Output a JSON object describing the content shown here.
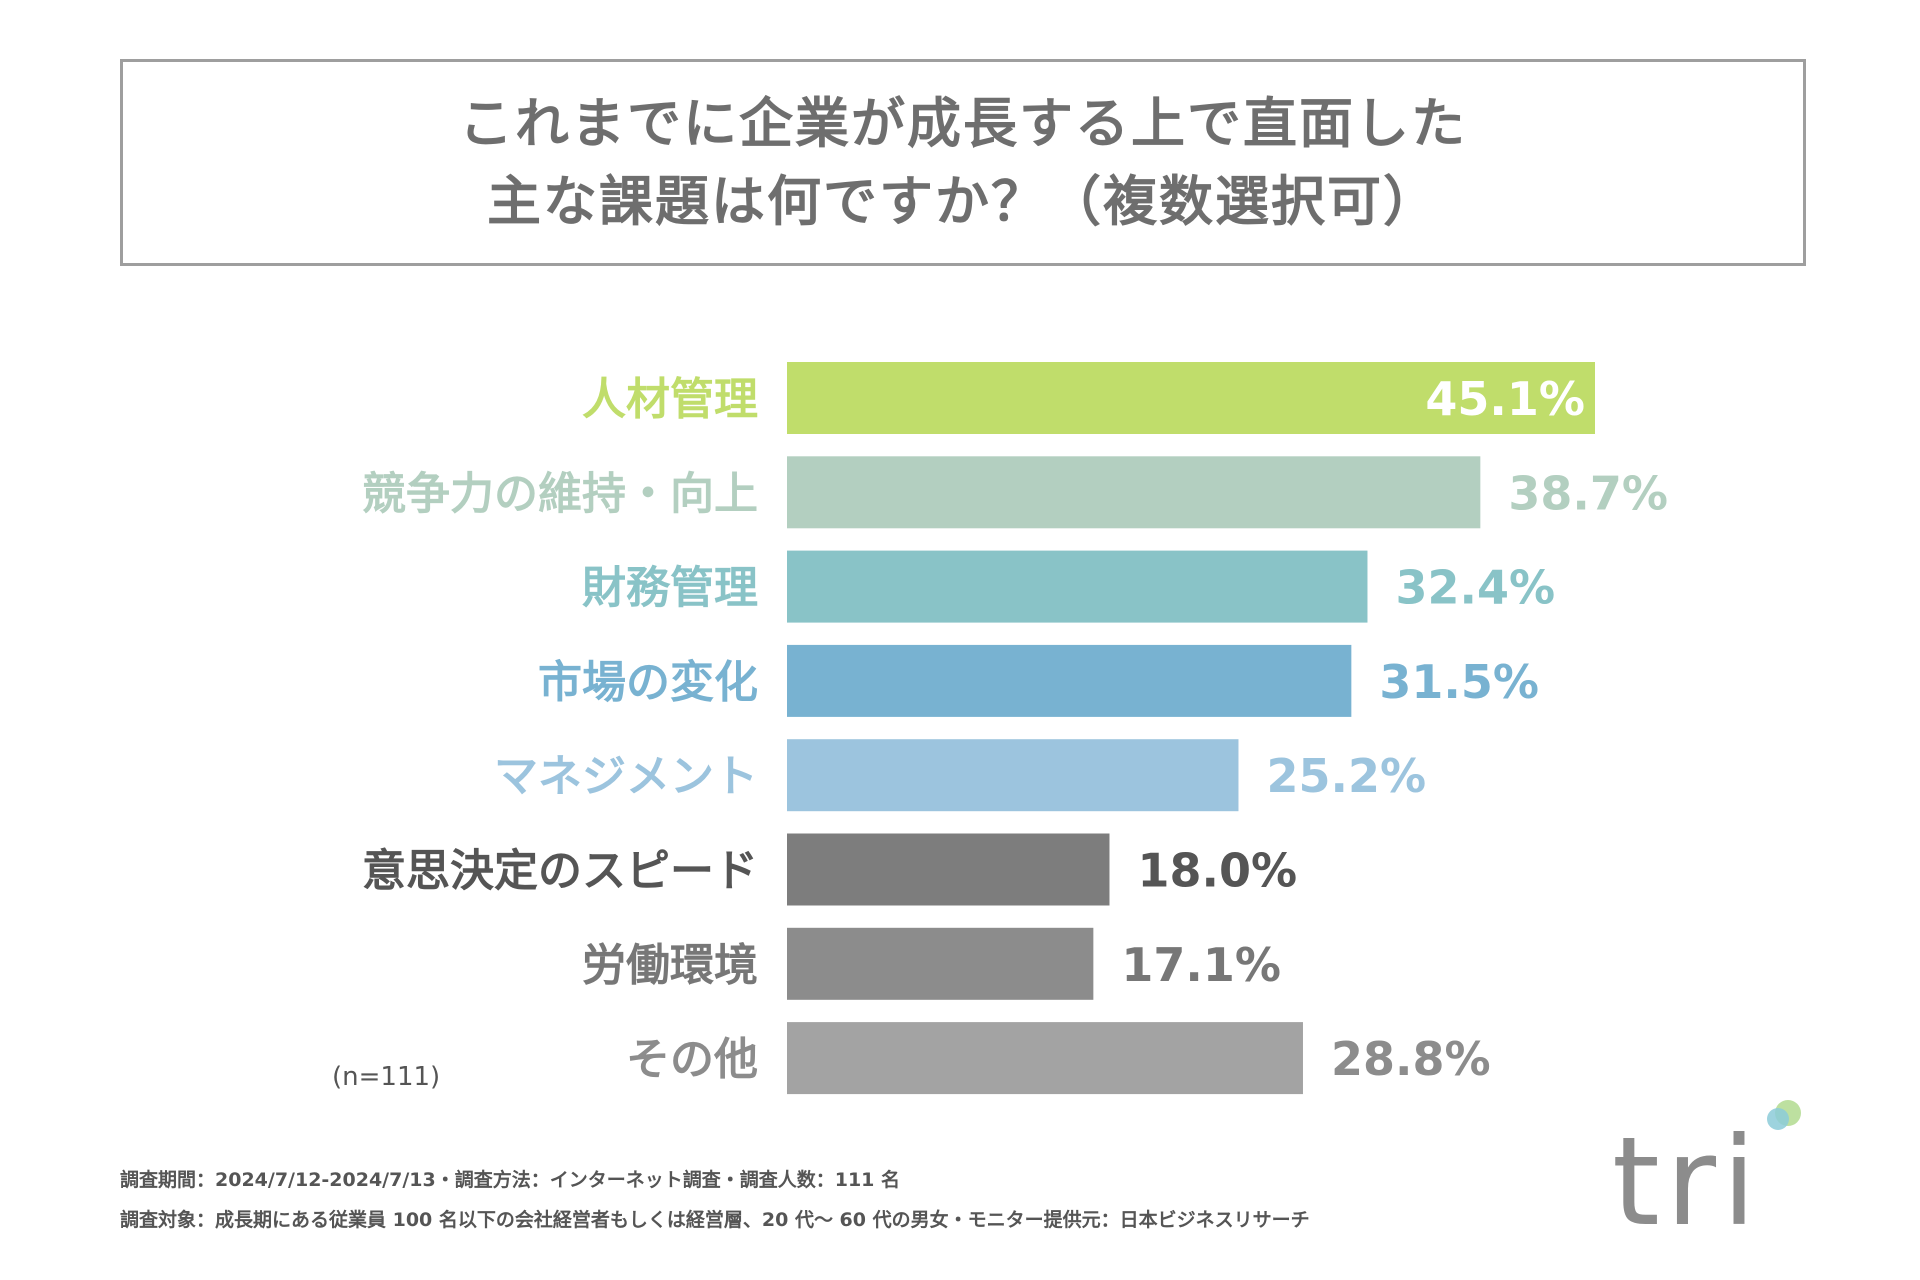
{
  "title": {
    "line1": "これまでに企業が成長する上で直面した",
    "line2": "主な課題は何ですか？（複数選択可）"
  },
  "chart_data": {
    "type": "bar",
    "orientation": "horizontal",
    "categories": [
      "人材管理",
      "競争力の維持・向上",
      "財務管理",
      "市場の変化",
      "マネジメント",
      "意思決定のスピード",
      "労働環境",
      "その他"
    ],
    "values": [
      45.1,
      38.7,
      32.4,
      31.5,
      25.2,
      18.0,
      17.1,
      28.8
    ],
    "value_labels": [
      "45.1%",
      "38.7%",
      "32.4%",
      "31.5%",
      "25.2%",
      "18.0%",
      "17.1%",
      "28.8%"
    ],
    "colors": [
      "#c0dd6b",
      "#b3cfc0",
      "#89c3c7",
      "#78b2d1",
      "#9cc4de",
      "#7d7d7d",
      "#8c8c8c",
      "#a3a3a3"
    ],
    "label_colors": [
      "#c0dd6b",
      "#b3cfc0",
      "#89c3c7",
      "#78b2d1",
      "#9cc4de",
      "#555555",
      "#777777",
      "#8c8c8c"
    ],
    "value_inside": [
      true,
      false,
      false,
      false,
      false,
      false,
      false,
      false
    ],
    "unit": "%",
    "xlim": [
      0,
      45.1
    ]
  },
  "sample": "(n=111)",
  "footer": {
    "line1": "調査期間：2024/7/12-2024/7/13・調査方法：インターネット調査・調査人数：111 名",
    "line2": "調査対象：成長期にある従業員 100 名以下の会社経営者もしくは経営層、20 代〜 60 代の男女・モニター提供元：日本ビジネスリサーチ"
  },
  "logo": {
    "text": "tri",
    "dot_colors": [
      "#bde0a0",
      "#8ccbd8"
    ]
  }
}
